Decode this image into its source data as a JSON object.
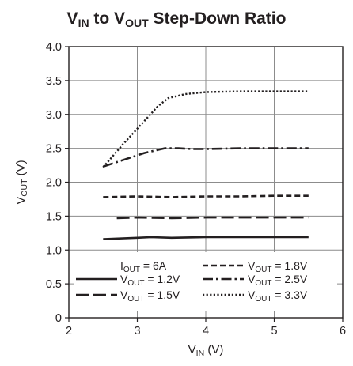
{
  "chart_data": {
    "type": "line",
    "title": {
      "parts": [
        {
          "t": "V"
        },
        {
          "t": "IN",
          "sub": true
        },
        {
          "t": " to V"
        },
        {
          "t": "OUT",
          "sub": true
        },
        {
          "t": " Step-Down Ratio"
        }
      ]
    },
    "xlabel": {
      "parts": [
        {
          "t": "V"
        },
        {
          "t": "IN",
          "sub": true
        },
        {
          "t": " (V)"
        }
      ]
    },
    "ylabel": {
      "parts": [
        {
          "t": "V"
        },
        {
          "t": "OUT",
          "sub": true
        },
        {
          "t": " (V)"
        }
      ]
    },
    "xlim": [
      2,
      6
    ],
    "ylim": [
      0,
      4.0
    ],
    "xticks": [
      "2",
      "3",
      "4",
      "5",
      "6"
    ],
    "yticks": [
      "0",
      "0.5",
      "1.0",
      "1.5",
      "2.0",
      "2.5",
      "3.0",
      "3.5",
      "4.0"
    ],
    "grid": true,
    "legend_title": {
      "parts": [
        {
          "t": "I"
        },
        {
          "t": "OUT",
          "sub": true
        },
        {
          "t": " = 6A"
        }
      ]
    },
    "series": [
      {
        "name": "V_OUT = 1.2V",
        "label": {
          "parts": [
            {
              "t": "V"
            },
            {
              "t": "OUT",
              "sub": true
            },
            {
              "t": " = 1.2V"
            }
          ]
        },
        "dash": "solid",
        "points": [
          [
            2.5,
            1.16
          ],
          [
            3.0,
            1.18
          ],
          [
            3.2,
            1.19
          ],
          [
            3.5,
            1.18
          ],
          [
            4.0,
            1.19
          ],
          [
            4.5,
            1.19
          ],
          [
            5.0,
            1.19
          ],
          [
            5.5,
            1.19
          ]
        ]
      },
      {
        "name": "V_OUT = 1.5V",
        "label": {
          "parts": [
            {
              "t": "V"
            },
            {
              "t": "OUT",
              "sub": true
            },
            {
              "t": " = 1.5V"
            }
          ]
        },
        "dash": "long",
        "points": [
          [
            2.7,
            1.47
          ],
          [
            3.0,
            1.48
          ],
          [
            3.5,
            1.47
          ],
          [
            4.0,
            1.48
          ],
          [
            4.5,
            1.48
          ],
          [
            5.0,
            1.48
          ],
          [
            5.5,
            1.48
          ]
        ]
      },
      {
        "name": "V_OUT = 1.8V",
        "label": {
          "parts": [
            {
              "t": "V"
            },
            {
              "t": "OUT",
              "sub": true
            },
            {
              "t": " = 1.8V"
            }
          ]
        },
        "dash": "short",
        "points": [
          [
            2.5,
            1.78
          ],
          [
            3.0,
            1.79
          ],
          [
            3.5,
            1.78
          ],
          [
            4.0,
            1.79
          ],
          [
            4.5,
            1.79
          ],
          [
            5.0,
            1.8
          ],
          [
            5.5,
            1.8
          ]
        ]
      },
      {
        "name": "V_OUT = 2.5V",
        "label": {
          "parts": [
            {
              "t": "V"
            },
            {
              "t": "OUT",
              "sub": true
            },
            {
              "t": " = 2.5V"
            }
          ]
        },
        "dash": "dashdot",
        "points": [
          [
            2.5,
            2.23
          ],
          [
            2.8,
            2.33
          ],
          [
            3.1,
            2.43
          ],
          [
            3.4,
            2.5
          ],
          [
            3.6,
            2.5
          ],
          [
            3.8,
            2.49
          ],
          [
            4.0,
            2.49
          ],
          [
            4.5,
            2.5
          ],
          [
            5.0,
            2.5
          ],
          [
            5.5,
            2.5
          ]
        ]
      },
      {
        "name": "V_OUT = 3.3V",
        "label": {
          "parts": [
            {
              "t": "V"
            },
            {
              "t": "OUT",
              "sub": true
            },
            {
              "t": " = 3.3V"
            }
          ]
        },
        "dash": "dotted",
        "points": [
          [
            2.5,
            2.22
          ],
          [
            2.8,
            2.57
          ],
          [
            3.1,
            2.9
          ],
          [
            3.3,
            3.12
          ],
          [
            3.45,
            3.24
          ],
          [
            3.7,
            3.3
          ],
          [
            4.0,
            3.33
          ],
          [
            4.5,
            3.34
          ],
          [
            5.0,
            3.34
          ],
          [
            5.5,
            3.34
          ]
        ]
      }
    ]
  }
}
